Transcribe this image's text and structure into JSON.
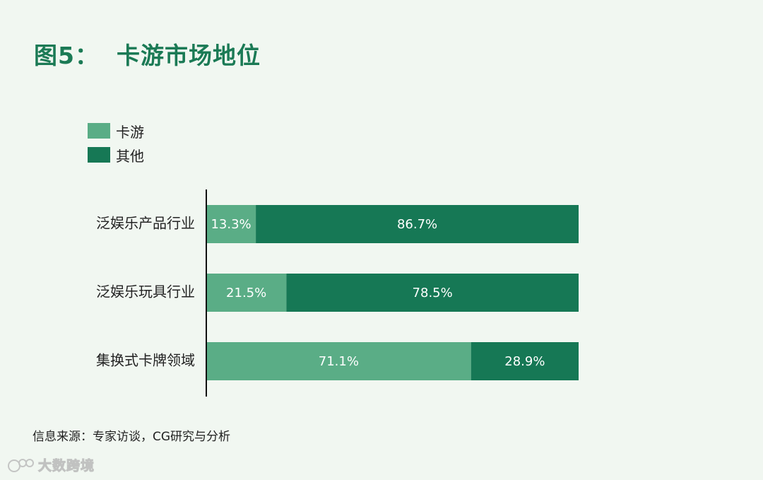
{
  "title": "图5：  卡游市场地位",
  "source": "信息来源：专家访谈，CG研究与分析",
  "watermark": "大数跨境",
  "colors": {
    "卡游": "#5aad86",
    "其他": "#167855"
  },
  "chart_data": {
    "type": "bar",
    "orientation": "horizontal",
    "stacked": true,
    "categories": [
      "泛娱乐产品行业",
      "泛娱乐玩具行业",
      "集换式卡牌领域"
    ],
    "series": [
      {
        "name": "卡游",
        "values": [
          13.3,
          21.5,
          71.1
        ],
        "labels": [
          "13.3%",
          "21.5%",
          "71.1%"
        ]
      },
      {
        "name": "其他",
        "values": [
          86.7,
          78.5,
          28.9
        ],
        "labels": [
          "86.7%",
          "78.5%",
          "28.9%"
        ]
      }
    ],
    "xlim": [
      0,
      100
    ],
    "legend_position": "top-left",
    "grid": false
  }
}
